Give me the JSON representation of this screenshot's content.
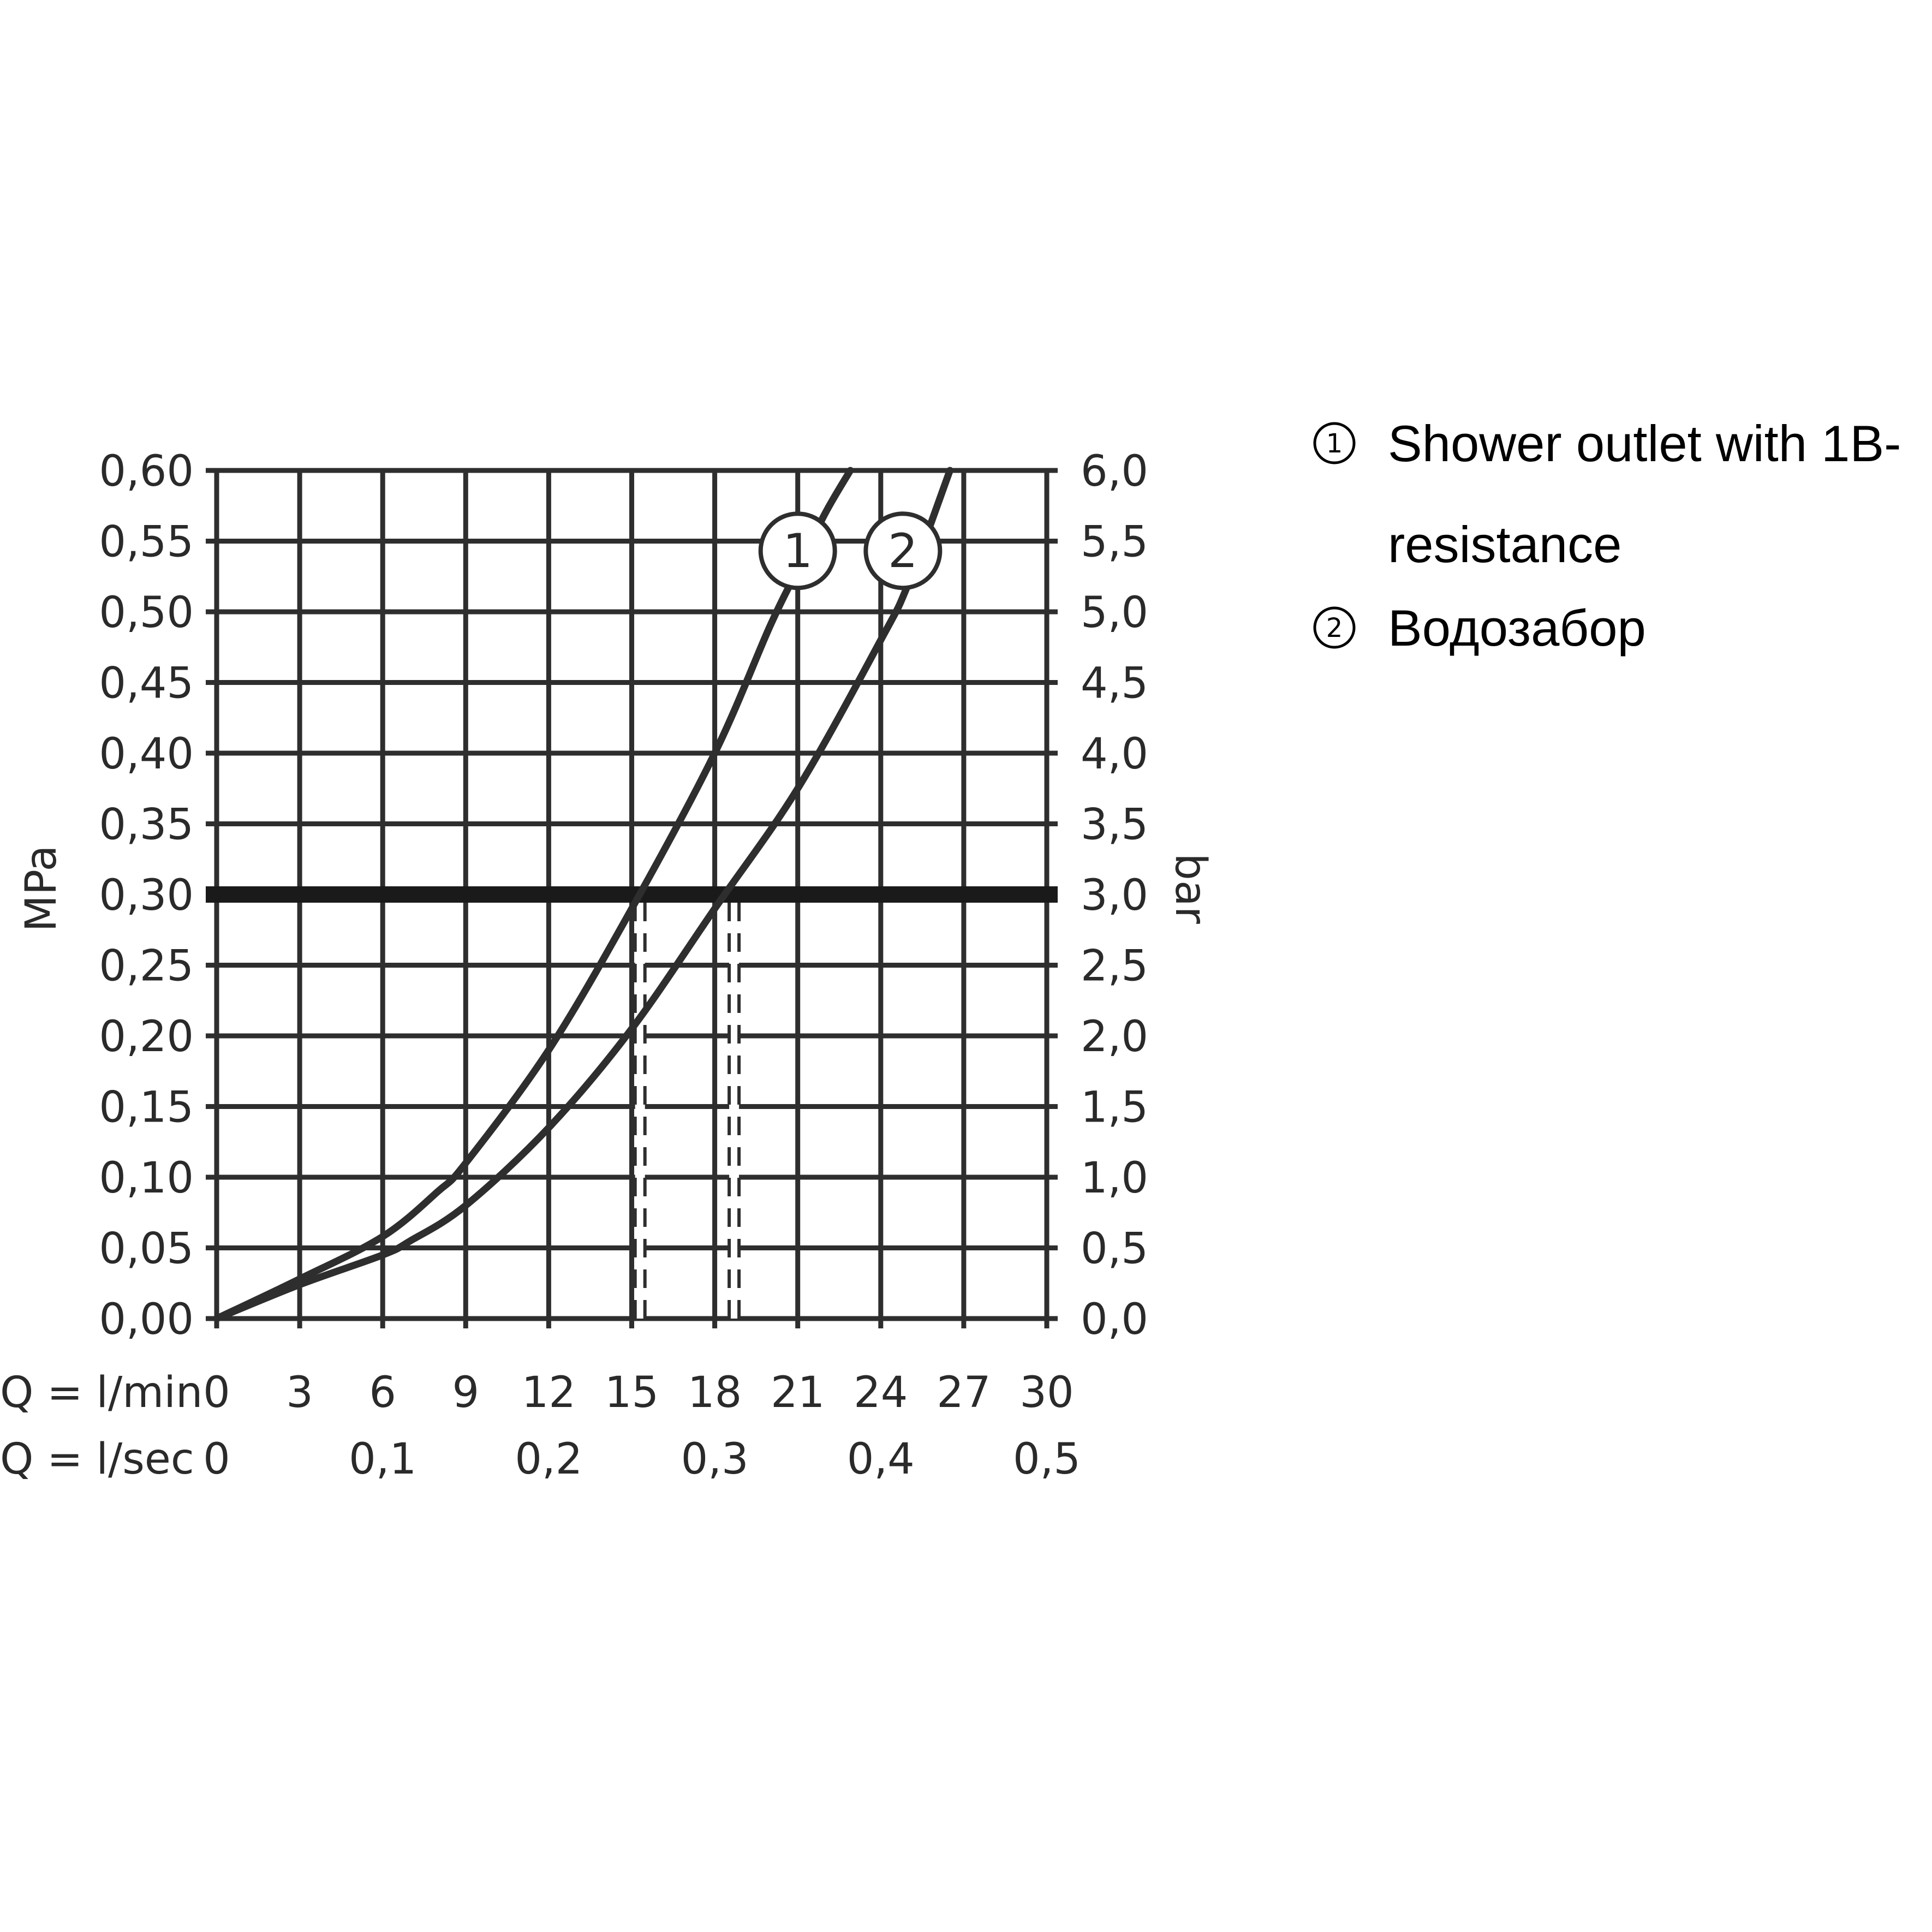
{
  "chart_data": {
    "type": "line",
    "x_unit_label": "Q = l/min",
    "x2_unit_label": "Q = l/sec",
    "ylabel": "MPa",
    "y2label": "bar",
    "xlim": [
      0,
      30
    ],
    "ylim": [
      0,
      0.6
    ],
    "x_ticks": [
      "0",
      "3",
      "6",
      "9",
      "12",
      "15",
      "18",
      "21",
      "24",
      "27",
      "30"
    ],
    "x2_ticks": [
      {
        "x": 0,
        "label": "0"
      },
      {
        "x": 6,
        "label": "0,1"
      },
      {
        "x": 12,
        "label": "0,2"
      },
      {
        "x": 18,
        "label": "0,3"
      },
      {
        "x": 24,
        "label": "0,4"
      },
      {
        "x": 30,
        "label": "0,5"
      }
    ],
    "y_ticks": [
      "0,00",
      "0,05",
      "0,10",
      "0,15",
      "0,20",
      "0,25",
      "0,30",
      "0,35",
      "0,40",
      "0,45",
      "0,50",
      "0,55",
      "0,60"
    ],
    "y2_ticks": [
      "0,0",
      "0,5",
      "1,0",
      "1,5",
      "2,0",
      "2,5",
      "3,0",
      "3,5",
      "4,0",
      "4,5",
      "5,0",
      "5,5",
      "6,0"
    ],
    "grid": true,
    "reference_line": {
      "y": 0.3
    },
    "drop_lines": [
      {
        "x": 15.3,
        "y": 0.3
      },
      {
        "x": 18.7,
        "y": 0.3
      }
    ],
    "series": [
      {
        "marker_label": "1",
        "marker_at": [
          21.0,
          0.52
        ],
        "points": [
          [
            0,
            0
          ],
          [
            3,
            0.028
          ],
          [
            6,
            0.058
          ],
          [
            8,
            0.09
          ],
          [
            9,
            0.11
          ],
          [
            12,
            0.19
          ],
          [
            15,
            0.29
          ],
          [
            18,
            0.4
          ],
          [
            20,
            0.49
          ],
          [
            21,
            0.53
          ],
          [
            22,
            0.57
          ],
          [
            22.9,
            0.6
          ]
        ]
      },
      {
        "marker_label": "2",
        "marker_at": [
          24.8,
          0.52
        ],
        "points": [
          [
            0,
            0
          ],
          [
            3,
            0.024
          ],
          [
            6,
            0.045
          ],
          [
            7,
            0.055
          ],
          [
            9,
            0.08
          ],
          [
            12,
            0.135
          ],
          [
            15,
            0.205
          ],
          [
            18,
            0.29
          ],
          [
            21,
            0.375
          ],
          [
            24,
            0.48
          ],
          [
            25,
            0.52
          ],
          [
            26.5,
            0.6
          ]
        ]
      }
    ]
  },
  "legend": {
    "items": [
      {
        "number": "1",
        "line1": "Shower outlet with 1B-",
        "line2": "resistance"
      },
      {
        "number": "2",
        "line1": "Водозабор",
        "line2": ""
      }
    ]
  },
  "colors": {
    "line": "#2e2e2e",
    "grid": "#2e2e2e",
    "text": "#2a2a2a",
    "background": "#ffffff"
  }
}
